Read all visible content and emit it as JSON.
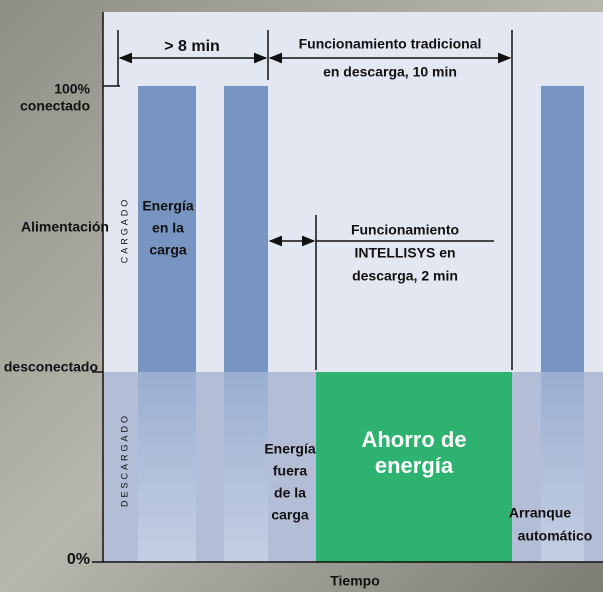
{
  "header_spans": {
    "short": "> 8 min",
    "traditional": [
      "Funcionamiento tradicional",
      "en descarga, 10 min"
    ]
  },
  "axis_labels": {
    "top_percent": "100%",
    "top_state": "conectado",
    "middle": "Alimentación",
    "threshold": "desconectado",
    "bottom_percent": "0%",
    "x_axis": "Tiempo",
    "upper_zone": "CARGADO",
    "lower_zone": "DESCARGADO"
  },
  "annotations": {
    "energy_on_load": [
      "Energía",
      "en la",
      "carga"
    ],
    "intellisys": [
      "Funcionamiento",
      "INTELLISYS en",
      "descarga, 2 min"
    ],
    "energy_off_load": [
      "Energía",
      "fuera",
      "de la",
      "carga"
    ],
    "savings": [
      "Ahorro de",
      "energía"
    ],
    "auto_start": [
      "Arranque",
      "automático"
    ]
  }
}
